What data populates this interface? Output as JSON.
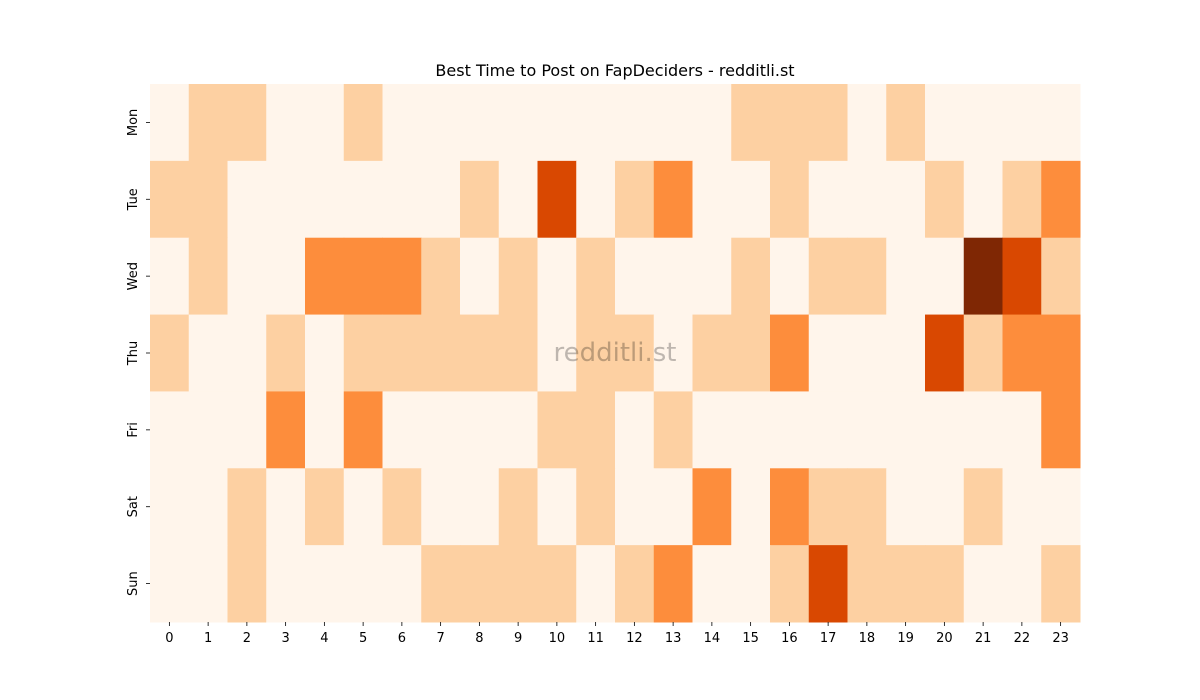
{
  "chart_data": {
    "type": "heatmap",
    "title": "Best Time to Post on FapDeciders - redditli.st",
    "watermark": "redditli.st",
    "xlabel": "",
    "ylabel": "",
    "x_categories": [
      "0",
      "1",
      "2",
      "3",
      "4",
      "5",
      "6",
      "7",
      "8",
      "9",
      "10",
      "11",
      "12",
      "13",
      "14",
      "15",
      "16",
      "17",
      "18",
      "19",
      "20",
      "21",
      "22",
      "23"
    ],
    "y_categories": [
      "Mon",
      "Tue",
      "Wed",
      "Thu",
      "Fri",
      "Sat",
      "Sun"
    ],
    "value_range": [
      0,
      4
    ],
    "colorbar": false,
    "colors": [
      "#fff5eb",
      "#fdd0a2",
      "#fd8d3c",
      "#d94801",
      "#7f2704"
    ],
    "values": [
      [
        0,
        1,
        1,
        0,
        0,
        1,
        0,
        0,
        0,
        0,
        0,
        0,
        0,
        0,
        0,
        1,
        1,
        1,
        0,
        1,
        0,
        0,
        0,
        0
      ],
      [
        1,
        1,
        0,
        0,
        0,
        0,
        0,
        0,
        1,
        0,
        3,
        0,
        1,
        2,
        0,
        0,
        1,
        0,
        0,
        0,
        1,
        0,
        1,
        2
      ],
      [
        0,
        1,
        0,
        0,
        2,
        2,
        2,
        1,
        0,
        1,
        0,
        1,
        0,
        0,
        0,
        1,
        0,
        1,
        1,
        0,
        0,
        4,
        3,
        1
      ],
      [
        1,
        0,
        0,
        1,
        0,
        1,
        1,
        1,
        1,
        1,
        0,
        1,
        1,
        0,
        1,
        1,
        2,
        0,
        0,
        0,
        3,
        1,
        2,
        2
      ],
      [
        0,
        0,
        0,
        2,
        0,
        2,
        0,
        0,
        0,
        0,
        1,
        1,
        0,
        1,
        0,
        0,
        0,
        0,
        0,
        0,
        0,
        0,
        0,
        2
      ],
      [
        0,
        0,
        1,
        0,
        1,
        0,
        1,
        0,
        0,
        1,
        0,
        1,
        0,
        0,
        2,
        0,
        2,
        1,
        1,
        0,
        0,
        1,
        0,
        0
      ],
      [
        0,
        0,
        1,
        0,
        0,
        0,
        0,
        1,
        1,
        1,
        1,
        0,
        1,
        2,
        0,
        0,
        1,
        3,
        1,
        1,
        1,
        0,
        0,
        1
      ]
    ]
  }
}
